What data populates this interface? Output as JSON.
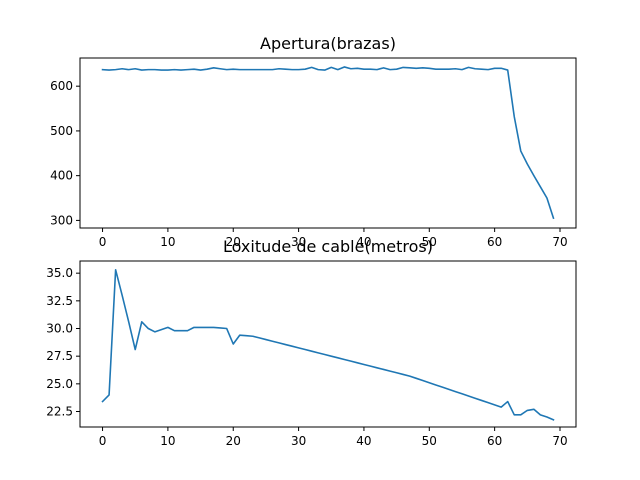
{
  "chart_data": [
    {
      "type": "line",
      "title": "Apertura(brazas)",
      "xlabel": "",
      "ylabel": "",
      "xlim": [
        -3.45,
        72.45
      ],
      "ylim": [
        283,
        663
      ],
      "xticks": [
        0,
        10,
        20,
        30,
        40,
        50,
        60,
        70
      ],
      "xtick_labels": [
        "0",
        "10",
        "20",
        "30",
        "40",
        "50",
        "60",
        "70"
      ],
      "yticks": [
        300,
        400,
        500,
        600
      ],
      "ytick_labels": [
        "300",
        "400",
        "500",
        "600"
      ],
      "grid": false,
      "color": "#1f77b4",
      "series": [
        {
          "name": "",
          "x": [
            0,
            1,
            2,
            3,
            4,
            5,
            6,
            7,
            8,
            9,
            10,
            11,
            12,
            13,
            14,
            15,
            16,
            17,
            18,
            19,
            20,
            21,
            22,
            23,
            24,
            25,
            26,
            27,
            28,
            29,
            30,
            31,
            32,
            33,
            34,
            35,
            36,
            37,
            38,
            39,
            40,
            41,
            42,
            43,
            44,
            45,
            46,
            47,
            48,
            49,
            50,
            51,
            52,
            53,
            54,
            55,
            56,
            57,
            58,
            59,
            60,
            61,
            62,
            63,
            64,
            65,
            66,
            67,
            68,
            69
          ],
          "y": [
            637,
            636,
            637,
            639,
            637,
            639,
            636,
            637,
            637,
            636,
            636,
            637,
            636,
            637,
            638,
            636,
            638,
            641,
            639,
            637,
            638,
            637,
            637,
            637,
            637,
            637,
            637,
            639,
            638,
            637,
            637,
            638,
            642,
            637,
            636,
            642,
            637,
            643,
            639,
            640,
            638,
            638,
            637,
            641,
            637,
            638,
            642,
            641,
            640,
            641,
            640,
            638,
            638,
            638,
            639,
            637,
            642,
            639,
            638,
            637,
            640,
            640,
            636,
            532,
            455,
            426,
            400,
            375,
            350,
            305
          ]
        }
      ]
    },
    {
      "type": "line",
      "title": "Loxitude de cable(metros)",
      "xlabel": "",
      "ylabel": "",
      "xlim": [
        -3.45,
        72.45
      ],
      "ylim": [
        21.1,
        36.1
      ],
      "xticks": [
        0,
        10,
        20,
        30,
        40,
        50,
        60,
        70
      ],
      "xtick_labels": [
        "0",
        "10",
        "20",
        "30",
        "40",
        "50",
        "60",
        "70"
      ],
      "yticks": [
        22.5,
        25.0,
        27.5,
        30.0,
        32.5,
        35.0
      ],
      "ytick_labels": [
        "22.5",
        "25.0",
        "27.5",
        "30.0",
        "32.5",
        "35.0"
      ],
      "grid": false,
      "color": "#1f77b4",
      "series": [
        {
          "name": "",
          "x": [
            0,
            1,
            2,
            3,
            4,
            5,
            6,
            7,
            8,
            9,
            10,
            11,
            12,
            13,
            14,
            15,
            16,
            17,
            18,
            19,
            20,
            21,
            22,
            23,
            24,
            25,
            26,
            27,
            28,
            29,
            30,
            31,
            32,
            33,
            34,
            35,
            36,
            37,
            38,
            39,
            40,
            41,
            42,
            43,
            44,
            45,
            46,
            47,
            48,
            49,
            50,
            51,
            52,
            53,
            54,
            55,
            56,
            57,
            58,
            59,
            60,
            61,
            62,
            63,
            64,
            65,
            66,
            67,
            68,
            69
          ],
          "y": [
            23.4,
            24.0,
            35.3,
            33.0,
            30.6,
            28.1,
            30.6,
            30.0,
            29.7,
            29.9,
            30.1,
            29.8,
            29.8,
            29.8,
            30.1,
            30.1,
            30.1,
            30.1,
            30.05,
            30.0,
            28.6,
            29.4,
            29.35,
            29.3,
            29.15,
            29.0,
            28.85,
            28.7,
            28.55,
            28.4,
            28.25,
            28.1,
            27.95,
            27.8,
            27.65,
            27.5,
            27.35,
            27.2,
            27.05,
            26.9,
            26.75,
            26.6,
            26.45,
            26.3,
            26.15,
            26.0,
            25.85,
            25.7,
            25.5,
            25.3,
            25.1,
            24.9,
            24.7,
            24.5,
            24.3,
            24.1,
            23.9,
            23.7,
            23.5,
            23.3,
            23.1,
            22.9,
            23.4,
            22.2,
            22.2,
            22.6,
            22.7,
            22.2,
            22.0,
            21.75
          ]
        }
      ]
    }
  ]
}
